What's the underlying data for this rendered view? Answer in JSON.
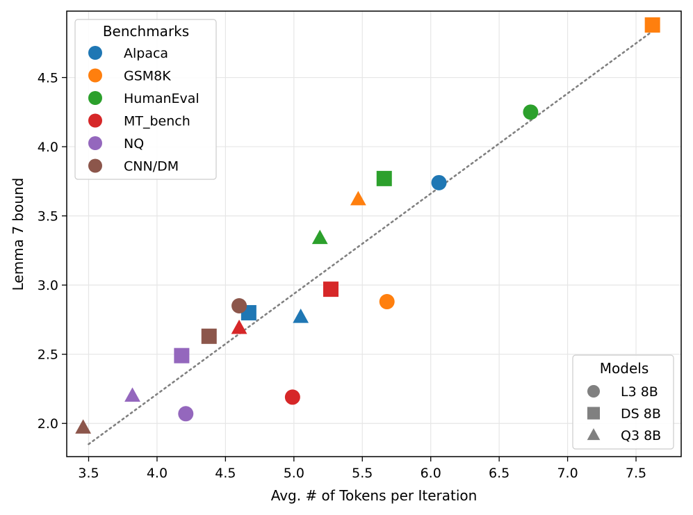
{
  "chart_data": {
    "type": "scatter",
    "xlabel": "Avg. # of Tokens per Iteration",
    "ylabel": "Lemma 7 bound",
    "xlim": [
      3.34,
      7.83
    ],
    "ylim": [
      1.76,
      4.98
    ],
    "xticks": [
      "3.5",
      "4.0",
      "4.5",
      "5.0",
      "5.5",
      "6.0",
      "6.5",
      "7.0",
      "7.5"
    ],
    "yticks": [
      "2.0",
      "2.5",
      "3.0",
      "3.5",
      "4.0",
      "4.5"
    ],
    "grid": true,
    "trend_line": {
      "style": "dotted",
      "color": "#808080",
      "x": [
        3.5,
        7.6
      ],
      "y": [
        1.85,
        4.82
      ]
    },
    "benchmark_legend": {
      "title": "Benchmarks",
      "placement": "top-left",
      "entries": [
        {
          "name": "Alpaca",
          "color": "#1f77b4"
        },
        {
          "name": "GSM8K",
          "color": "#ff7f0e"
        },
        {
          "name": "HumanEval",
          "color": "#2ca02c"
        },
        {
          "name": "MT_bench",
          "color": "#d62728"
        },
        {
          "name": "NQ",
          "color": "#9467bd"
        },
        {
          "name": "CNN/DM",
          "color": "#8c564b"
        }
      ]
    },
    "model_legend": {
      "title": "Models",
      "placement": "bottom-right",
      "entries": [
        {
          "name": "L3 8B",
          "marker": "circle"
        },
        {
          "name": "DS 8B",
          "marker": "square"
        },
        {
          "name": "Q3 8B",
          "marker": "triangle"
        }
      ]
    },
    "points": [
      {
        "benchmark": "Alpaca",
        "model": "L3 8B",
        "x": 6.06,
        "y": 3.74
      },
      {
        "benchmark": "Alpaca",
        "model": "DS 8B",
        "x": 4.67,
        "y": 2.8
      },
      {
        "benchmark": "Alpaca",
        "model": "Q3 8B",
        "x": 5.05,
        "y": 2.77
      },
      {
        "benchmark": "GSM8K",
        "model": "L3 8B",
        "x": 5.68,
        "y": 2.88
      },
      {
        "benchmark": "GSM8K",
        "model": "DS 8B",
        "x": 7.62,
        "y": 4.88
      },
      {
        "benchmark": "GSM8K",
        "model": "Q3 8B",
        "x": 5.47,
        "y": 3.62
      },
      {
        "benchmark": "HumanEval",
        "model": "L3 8B",
        "x": 6.73,
        "y": 4.25
      },
      {
        "benchmark": "HumanEval",
        "model": "DS 8B",
        "x": 5.66,
        "y": 3.77
      },
      {
        "benchmark": "HumanEval",
        "model": "Q3 8B",
        "x": 5.19,
        "y": 3.34
      },
      {
        "benchmark": "MT_bench",
        "model": "L3 8B",
        "x": 4.99,
        "y": 2.19
      },
      {
        "benchmark": "MT_bench",
        "model": "DS 8B",
        "x": 5.27,
        "y": 2.97
      },
      {
        "benchmark": "MT_bench",
        "model": "Q3 8B",
        "x": 4.6,
        "y": 2.69
      },
      {
        "benchmark": "NQ",
        "model": "L3 8B",
        "x": 4.21,
        "y": 2.07
      },
      {
        "benchmark": "NQ",
        "model": "DS 8B",
        "x": 4.18,
        "y": 2.49
      },
      {
        "benchmark": "NQ",
        "model": "Q3 8B",
        "x": 3.82,
        "y": 2.2
      },
      {
        "benchmark": "CNN/DM",
        "model": "L3 8B",
        "x": 4.6,
        "y": 2.85
      },
      {
        "benchmark": "CNN/DM",
        "model": "DS 8B",
        "x": 4.38,
        "y": 2.63
      },
      {
        "benchmark": "CNN/DM",
        "model": "Q3 8B",
        "x": 3.46,
        "y": 1.97
      }
    ]
  }
}
